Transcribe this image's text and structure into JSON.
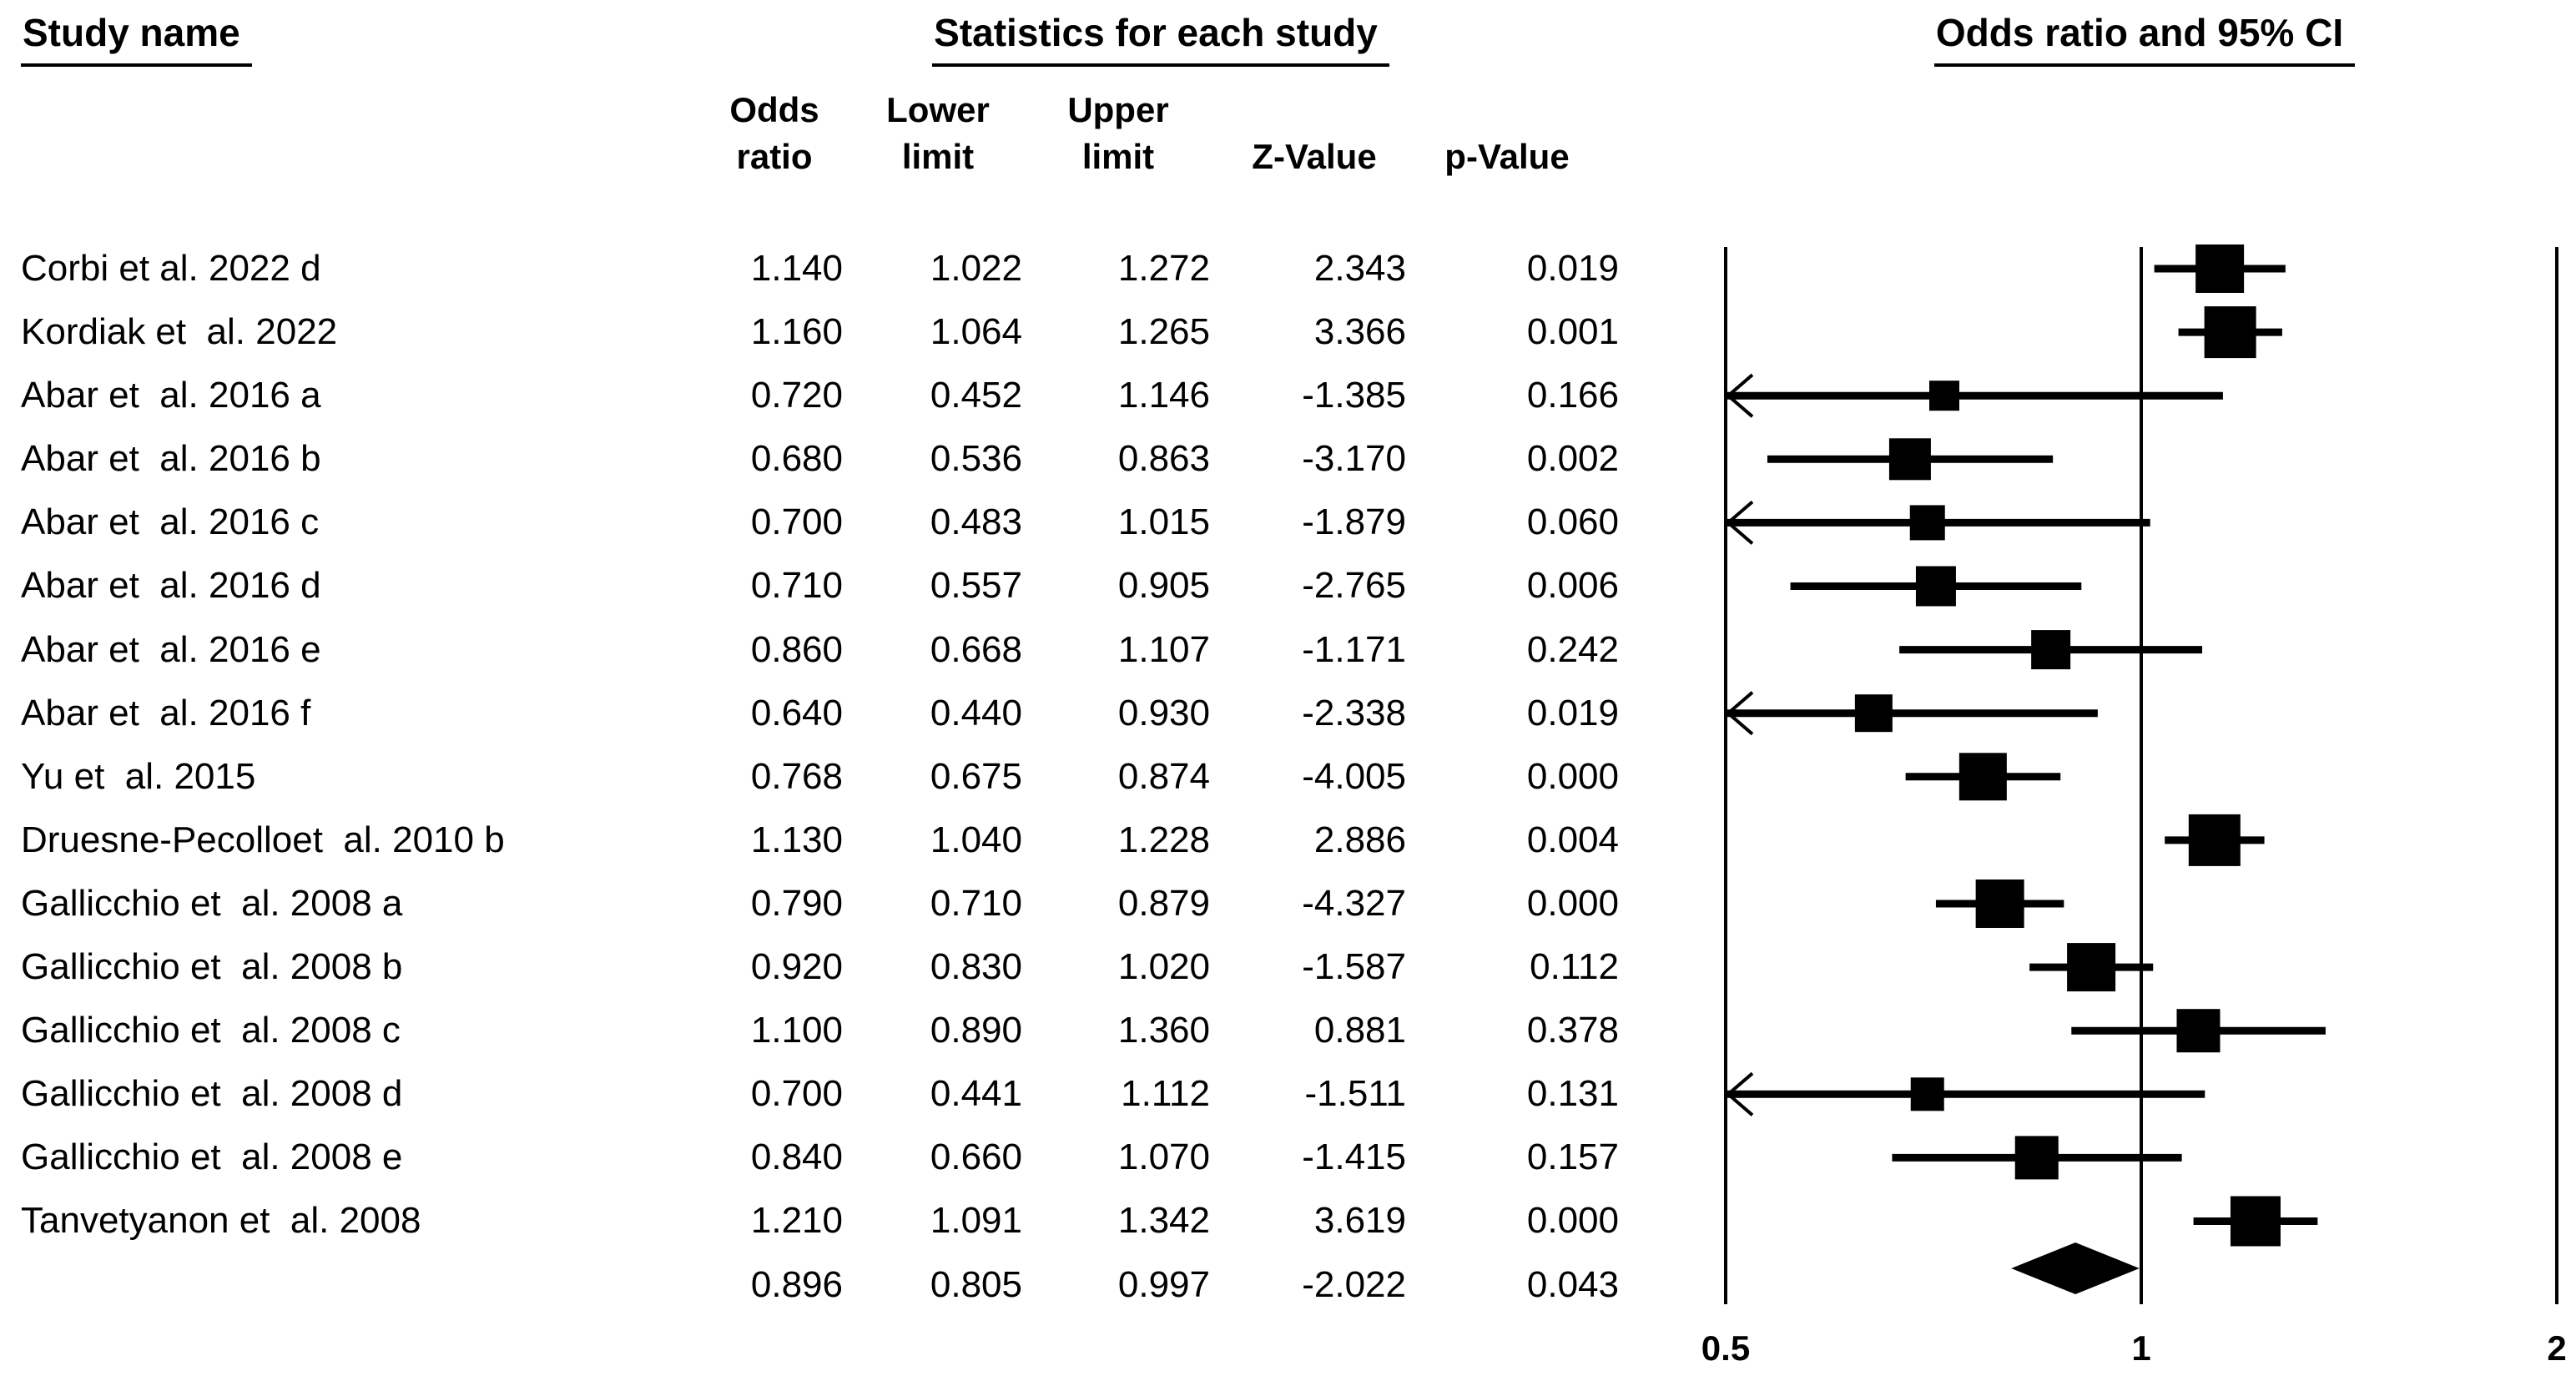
{
  "figure": {
    "study_col_header": "Study name",
    "stats_col_header": "Statistics for each study",
    "plot_col_header": "Odds ratio and 95% CI",
    "stat_subheaders": {
      "odds_ratio": [
        "Odds",
        "ratio"
      ],
      "lower": [
        "Lower",
        "limit"
      ],
      "upper": [
        "Upper",
        "limit"
      ],
      "z": [
        " ",
        "Z-Value"
      ],
      "p": [
        " ",
        "p-Value"
      ]
    }
  },
  "chart_data": {
    "type": "forest",
    "x_scale": "log2",
    "x_range": [
      0.5,
      2
    ],
    "x_ticks": [
      "0.5",
      "1",
      "2"
    ],
    "reference_line": 1,
    "grid": false,
    "marker_color": "#000000",
    "studies": [
      {
        "name": "Corbi et al. 2022 d",
        "or": "1.140",
        "lower": "1.022",
        "upper": "1.272",
        "z": "2.343",
        "p": "0.019",
        "marker": 58
      },
      {
        "name": "Kordiak et  al. 2022",
        "or": "1.160",
        "lower": "1.064",
        "upper": "1.265",
        "z": "3.366",
        "p": "0.001",
        "marker": 62
      },
      {
        "name": "Abar et  al. 2016 a",
        "or": "0.720",
        "lower": "0.452",
        "upper": "1.146",
        "z": "-1.385",
        "p": "0.166",
        "marker": 36
      },
      {
        "name": "Abar et  al. 2016 b",
        "or": "0.680",
        "lower": "0.536",
        "upper": "0.863",
        "z": "-3.170",
        "p": "0.002",
        "marker": 50
      },
      {
        "name": "Abar et  al. 2016 c",
        "or": "0.700",
        "lower": "0.483",
        "upper": "1.015",
        "z": "-1.879",
        "p": "0.060",
        "marker": 42
      },
      {
        "name": "Abar et  al. 2016 d",
        "or": "0.710",
        "lower": "0.557",
        "upper": "0.905",
        "z": "-2.765",
        "p": "0.006",
        "marker": 48
      },
      {
        "name": "Abar et  al. 2016 e",
        "or": "0.860",
        "lower": "0.668",
        "upper": "1.107",
        "z": "-1.171",
        "p": "0.242",
        "marker": 47
      },
      {
        "name": "Abar et  al. 2016 f",
        "or": "0.640",
        "lower": "0.440",
        "upper": "0.930",
        "z": "-2.338",
        "p": "0.019",
        "marker": 45
      },
      {
        "name": "Yu et  al. 2015",
        "or": "0.768",
        "lower": "0.675",
        "upper": "0.874",
        "z": "-4.005",
        "p": "0.000",
        "marker": 57
      },
      {
        "name": "Druesne-Pecolloet  al. 2010 b",
        "or": "1.130",
        "lower": "1.040",
        "upper": "1.228",
        "z": "2.886",
        "p": "0.004",
        "marker": 62
      },
      {
        "name": "Gallicchio et  al. 2008 a",
        "or": "0.790",
        "lower": "0.710",
        "upper": "0.879",
        "z": "-4.327",
        "p": "0.000",
        "marker": 58
      },
      {
        "name": "Gallicchio et  al. 2008 b",
        "or": "0.920",
        "lower": "0.830",
        "upper": "1.020",
        "z": "-1.587",
        "p": "0.112",
        "marker": 58
      },
      {
        "name": "Gallicchio et  al. 2008 c",
        "or": "1.100",
        "lower": "0.890",
        "upper": "1.360",
        "z": "0.881",
        "p": "0.378",
        "marker": 52
      },
      {
        "name": "Gallicchio et  al. 2008 d",
        "or": "0.700",
        "lower": "0.441",
        "upper": "1.112",
        "z": "-1.511",
        "p": "0.131",
        "marker": 40
      },
      {
        "name": "Gallicchio et  al. 2008 e",
        "or": "0.840",
        "lower": "0.660",
        "upper": "1.070",
        "z": "-1.415",
        "p": "0.157",
        "marker": 52
      },
      {
        "name": "Tanvetyanon et  al. 2008",
        "or": "1.210",
        "lower": "1.091",
        "upper": "1.342",
        "z": "3.619",
        "p": "0.000",
        "marker": 60
      }
    ],
    "summary": {
      "name": "",
      "or": "0.896",
      "lower": "0.805",
      "upper": "0.997",
      "z": "-2.022",
      "p": "0.043"
    }
  }
}
